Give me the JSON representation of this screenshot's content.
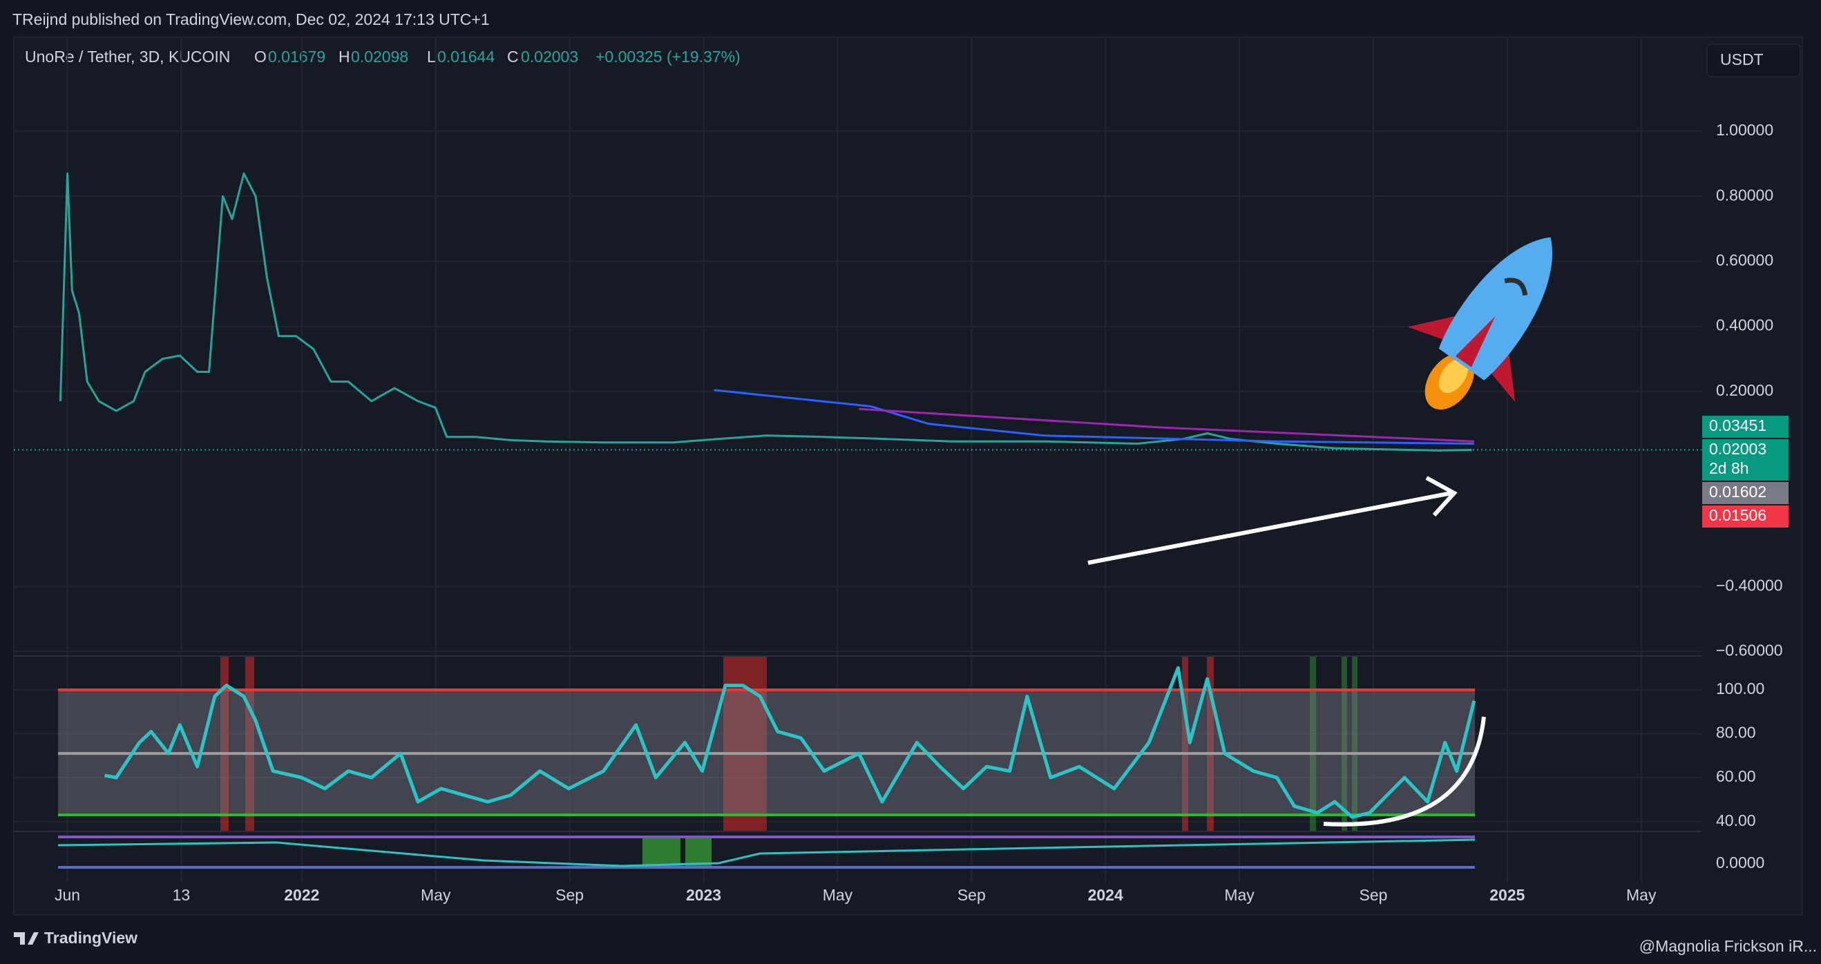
{
  "header": {
    "published": "TReijnd published on TradingView.com, Dec 02, 2024 17:13 UTC+1"
  },
  "legend": {
    "symbol": "UnoRe / Tether, 3D, KUCOIN",
    "open_label": "O",
    "open": 0.01679,
    "high_label": "H",
    "high": 0.02098,
    "low_label": "L",
    "low": 0.01644,
    "close_label": "C",
    "close": 0.02003,
    "change": "+0.00325 (+19.37%)"
  },
  "currency_button": "USDT",
  "price_labels": [
    {
      "value": 0.03451
    },
    {
      "value": 0.02003,
      "countdown": "2d 8h"
    },
    {
      "value": 0.01602
    },
    {
      "value": 0.01506
    }
  ],
  "oscillator_axis": {
    "label": "0.0000"
  },
  "footer": {
    "brand": "TradingView",
    "credit": "@Magnolia Frickson iR..."
  },
  "chart_data": [
    {
      "type": "line",
      "xlim": [
        -8.6,
        41.8
      ],
      "ylim": [
        -0.614,
        1.289
      ],
      "xticks": [
        {
          "value": -7,
          "label": "Jun"
        },
        {
          "value": -3.6,
          "label": "13"
        },
        {
          "value": 0,
          "label": "2022"
        },
        {
          "value": 4,
          "label": "May"
        },
        {
          "value": 8,
          "label": "Sep"
        },
        {
          "value": 12,
          "label": "2023"
        },
        {
          "value": 16,
          "label": "May"
        },
        {
          "value": 20,
          "label": "Sep"
        },
        {
          "value": 24,
          "label": "2024"
        },
        {
          "value": 28,
          "label": "May"
        },
        {
          "value": 32,
          "label": "Sep"
        },
        {
          "value": 36,
          "label": "2025"
        },
        {
          "value": 40,
          "label": "May"
        }
      ],
      "yticks": [
        {
          "value": 1,
          "label": "1.00000"
        },
        {
          "value": 0.8,
          "label": "0.80000"
        },
        {
          "value": 0.6,
          "label": "0.60000"
        },
        {
          "value": 0.4,
          "label": "0.40000"
        },
        {
          "value": 0.2,
          "label": "0.20000"
        },
        {
          "value": -0.4,
          "label": "−0.40000"
        },
        {
          "value": -0.6,
          "label": "−0.60000"
        }
      ],
      "grid": true,
      "series": [
        {
          "color": "#26a69a",
          "x": [
            -7.21,
            -7.0,
            -6.86,
            -6.65,
            -6.41,
            -6.06,
            -5.54,
            -5.02,
            -4.68,
            -4.16,
            -3.64,
            -3.12,
            -2.77,
            -2.36,
            -2.08,
            -1.73,
            -1.38,
            -1.04,
            -0.69,
            -0.17,
            0.35,
            0.87,
            1.39,
            2.08,
            2.77,
            3.47,
            3.99,
            4.33,
            5.2,
            6.24,
            7.28,
            9.01,
            11.09,
            12.48,
            13.87,
            15.25,
            17.33,
            19.41,
            22.18,
            24.96,
            26.34,
            27.04,
            27.73,
            29.12,
            30.85,
            32.58,
            33.97,
            34.94
          ],
          "values": [
            0.17,
            0.87,
            0.51,
            0.44,
            0.23,
            0.17,
            0.14,
            0.17,
            0.26,
            0.3,
            0.31,
            0.26,
            0.26,
            0.8,
            0.73,
            0.87,
            0.8,
            0.55,
            0.37,
            0.37,
            0.33,
            0.23,
            0.23,
            0.17,
            0.21,
            0.17,
            0.15,
            0.06,
            0.06,
            0.05,
            0.046,
            0.043,
            0.043,
            0.054,
            0.064,
            0.061,
            0.054,
            0.046,
            0.046,
            0.039,
            0.054,
            0.071,
            0.054,
            0.039,
            0.025,
            0.021,
            0.018,
            0.02003
          ]
        },
        {
          "color": "#2962ff",
          "x": [
            12.31,
            16.99,
            18.72,
            22.18,
            29.12,
            35.01
          ],
          "values": [
            0.204,
            0.154,
            0.1,
            0.064,
            0.046,
            0.039
          ]
        },
        {
          "color": "#9c27b0",
          "x": [
            16.64,
            25.65,
            35.01
          ],
          "values": [
            0.146,
            0.089,
            0.046
          ]
        }
      ]
    },
    {
      "type": "line",
      "xlim": [
        -8.6,
        41.8
      ],
      "ylim": [
        35.5,
        115.4
      ],
      "yticks": [
        {
          "value": 100,
          "label": "100.00"
        },
        {
          "value": 80,
          "label": "80.00"
        },
        {
          "value": 60,
          "label": "60.00"
        },
        {
          "value": 40,
          "label": "40.00"
        }
      ],
      "grid": true,
      "levels": [
        {
          "value": 100,
          "color": "#e53935"
        },
        {
          "value": 71,
          "color": "#9e9e9e"
        },
        {
          "value": 43,
          "color": "#26c226"
        }
      ],
      "series": [
        {
          "color": "#2bc4c4",
          "x": [
            -5.89,
            -5.54,
            -4.85,
            -4.5,
            -3.98,
            -3.64,
            -3.12,
            -2.6,
            -2.25,
            -1.73,
            -1.38,
            -0.86,
            0,
            0.69,
            1.39,
            2.08,
            2.95,
            3.47,
            4.16,
            4.85,
            5.55,
            6.24,
            7.11,
            7.97,
            9.01,
            9.98,
            10.57,
            11.44,
            11.96,
            12.65,
            13.17,
            13.69,
            14.21,
            14.91,
            15.6,
            16.64,
            17.33,
            18.37,
            19.06,
            19.76,
            20.45,
            21.14,
            21.66,
            22.36,
            23.22,
            24.26,
            25.3,
            26.17,
            26.52,
            27.04,
            27.56,
            28.42,
            29.12,
            29.64,
            30.33,
            30.85,
            31.37,
            31.89,
            32.93,
            33.62,
            34.14,
            34.49,
            35.01
          ],
          "values": [
            61,
            60,
            76,
            81,
            71,
            84,
            65,
            97,
            102,
            97,
            86,
            63,
            60,
            55,
            63,
            60,
            71,
            49,
            55,
            52,
            49,
            52,
            63,
            55,
            63,
            84,
            60,
            76,
            63,
            102,
            102,
            97,
            81,
            78,
            63,
            71,
            49,
            76,
            65,
            55,
            65,
            63,
            97,
            60,
            65,
            55,
            76,
            110,
            76,
            105,
            71,
            63,
            60,
            47,
            44,
            49,
            42,
            44,
            60,
            49,
            76,
            63,
            95
          ]
        }
      ]
    }
  ]
}
